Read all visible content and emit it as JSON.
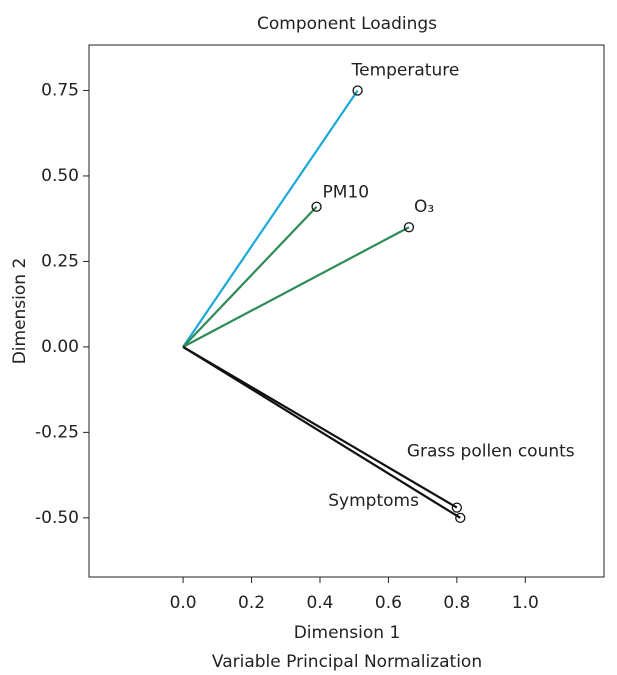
{
  "chart_data": {
    "type": "loading",
    "title": "Component Loadings",
    "x_label": "Dimension 1",
    "y_label": "Dimension 2",
    "subtitle": "Variable Principal Normalization",
    "xlim": [
      -0.275,
      1.23
    ],
    "ylim": [
      -0.673,
      0.883
    ],
    "xticks": [
      {
        "value": 0,
        "label": "0.0"
      },
      0.2,
      0.4,
      0.6,
      0.8,
      {
        "value": 1,
        "label": "1.0"
      }
    ],
    "yticks": [
      {
        "value": -0.5,
        "label": "-0.50"
      },
      {
        "value": -0.25,
        "label": "-0.25"
      },
      {
        "value": 0,
        "label": "0.00"
      },
      {
        "value": 0.25,
        "label": "0.25"
      },
      {
        "value": 0.5,
        "label": "0.50"
      },
      0.75
    ],
    "series": [
      {
        "name": "Temperature",
        "color": "#1ba9d8",
        "x": [
          0.51
        ],
        "values": [
          0.75
        ]
      },
      {
        "name": "PM10",
        "color": "#2e8b57",
        "x": [
          0.39
        ],
        "values": [
          0.41
        ]
      },
      {
        "name": "O₃",
        "color": "#2e8b57",
        "x": [
          0.66
        ],
        "values": [
          0.35
        ]
      },
      {
        "name": "Grass pollen counts",
        "color": "#111111",
        "x": [
          0.8
        ],
        "values": [
          -0.47
        ]
      },
      {
        "name": "Symptoms",
        "color": "#111111",
        "x": [
          0.81
        ],
        "values": [
          -0.5
        ]
      }
    ]
  }
}
